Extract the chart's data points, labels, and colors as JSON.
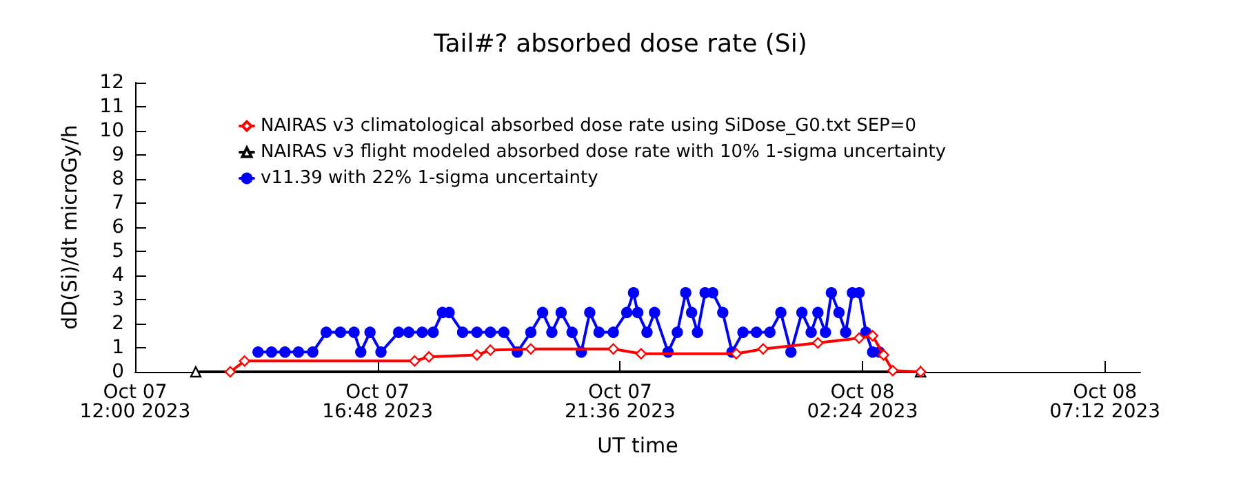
{
  "chart_data": {
    "type": "line",
    "title": "Tail#? absorbed dose rate (Si)",
    "xlabel": "UT time",
    "ylabel": "dD(Si)/dt microGy/h",
    "xlim": [
      "2023-10-07T12:00",
      "2023-10-08T07:54"
    ],
    "xticks": [
      {
        "value": "2023-10-07T12:00",
        "label": "Oct 07\n12:00 2023"
      },
      {
        "value": "2023-10-07T16:48",
        "label": "Oct 07\n16:48 2023"
      },
      {
        "value": "2023-10-07T21:36",
        "label": "Oct 07\n21:36 2023"
      },
      {
        "value": "2023-10-08T02:24",
        "label": "Oct 08\n02:24 2023"
      },
      {
        "value": "2023-10-08T07:12",
        "label": "Oct 08\n07:12 2023"
      }
    ],
    "ylim": [
      0,
      12
    ],
    "yticks": [
      0,
      1,
      2,
      3,
      4,
      5,
      6,
      7,
      8,
      9,
      10,
      11,
      12
    ],
    "grid": false,
    "legend": "top left",
    "series": [
      {
        "name": "NAIRAS v3 climatological absorbed dose rate using SiDose_G0.txt SEP=0",
        "color": "#ff0000",
        "marker": "diamond",
        "x": [
          "2023-10-07T13:53",
          "2023-10-07T14:10",
          "2023-10-07T17:32",
          "2023-10-07T17:49",
          "2023-10-07T18:46",
          "2023-10-07T19:02",
          "2023-10-07T19:50",
          "2023-10-07T21:28",
          "2023-10-07T22:01",
          "2023-10-07T23:54",
          "2023-10-08T00:26",
          "2023-10-08T01:31",
          "2023-10-08T02:20",
          "2023-10-08T02:36",
          "2023-10-08T02:49",
          "2023-10-08T03:00",
          "2023-10-08T03:33"
        ],
        "values": [
          0,
          0.45,
          0.45,
          0.62,
          0.7,
          0.9,
          0.95,
          0.95,
          0.75,
          0.75,
          0.95,
          1.2,
          1.4,
          1.5,
          0.7,
          0.05,
          0
        ]
      },
      {
        "name": "NAIRAS v3 flight modeled absorbed dose rate with 10% 1-sigma uncertainty",
        "color": "#000000",
        "marker": "triangle",
        "x": [
          "2023-10-07T13:12",
          "2023-10-08T03:33"
        ],
        "values": [
          0,
          0
        ]
      },
      {
        "name": "v11.39 with 22% 1-sigma uncertainty",
        "color": "#0000ff",
        "marker": "circle",
        "x": [
          "2023-10-07T14:26",
          "2023-10-07T14:42",
          "2023-10-07T14:58",
          "2023-10-07T15:14",
          "2023-10-07T15:31",
          "2023-10-07T15:47",
          "2023-10-07T16:04",
          "2023-10-07T16:20",
          "2023-10-07T16:28",
          "2023-10-07T16:39",
          "2023-10-07T16:52",
          "2023-10-07T17:13",
          "2023-10-07T17:25",
          "2023-10-07T17:41",
          "2023-10-07T17:54",
          "2023-10-07T18:05",
          "2023-10-07T18:13",
          "2023-10-07T18:29",
          "2023-10-07T18:46",
          "2023-10-07T19:02",
          "2023-10-07T19:18",
          "2023-10-07T19:34",
          "2023-10-07T19:50",
          "2023-10-07T20:04",
          "2023-10-07T20:15",
          "2023-10-07T20:26",
          "2023-10-07T20:39",
          "2023-10-07T20:50",
          "2023-10-07T21:00",
          "2023-10-07T21:11",
          "2023-10-07T21:28",
          "2023-10-07T21:44",
          "2023-10-07T21:52",
          "2023-10-07T21:57",
          "2023-10-07T22:08",
          "2023-10-07T22:17",
          "2023-10-07T22:33",
          "2023-10-07T22:44",
          "2023-10-07T22:54",
          "2023-10-07T23:01",
          "2023-10-07T23:08",
          "2023-10-07T23:17",
          "2023-10-07T23:26",
          "2023-10-07T23:38",
          "2023-10-07T23:49",
          "2023-10-08T00:02",
          "2023-10-08T00:18",
          "2023-10-08T00:34",
          "2023-10-08T00:47",
          "2023-10-08T00:59",
          "2023-10-08T01:12",
          "2023-10-08T01:23",
          "2023-10-08T01:31",
          "2023-10-08T01:40",
          "2023-10-08T01:47",
          "2023-10-08T01:56",
          "2023-10-08T02:04",
          "2023-10-08T02:12",
          "2023-10-08T02:20",
          "2023-10-08T02:28",
          "2023-10-08T02:36",
          "2023-10-08T02:44"
        ],
        "values": [
          0.82,
          0.82,
          0.82,
          0.82,
          0.82,
          1.64,
          1.64,
          1.64,
          0.82,
          1.64,
          0.82,
          1.64,
          1.64,
          1.64,
          1.64,
          2.46,
          2.46,
          1.64,
          1.64,
          1.64,
          1.64,
          0.82,
          1.64,
          2.46,
          1.64,
          2.46,
          1.64,
          0.82,
          2.46,
          1.64,
          1.64,
          2.46,
          3.28,
          2.46,
          1.64,
          2.46,
          0.82,
          1.64,
          3.28,
          2.46,
          1.64,
          3.28,
          3.28,
          2.46,
          0.82,
          1.64,
          1.64,
          1.64,
          2.46,
          0.82,
          2.46,
          1.64,
          2.46,
          1.64,
          3.28,
          2.46,
          1.64,
          3.28,
          3.28,
          1.64,
          0.82,
          0.82
        ]
      }
    ]
  }
}
